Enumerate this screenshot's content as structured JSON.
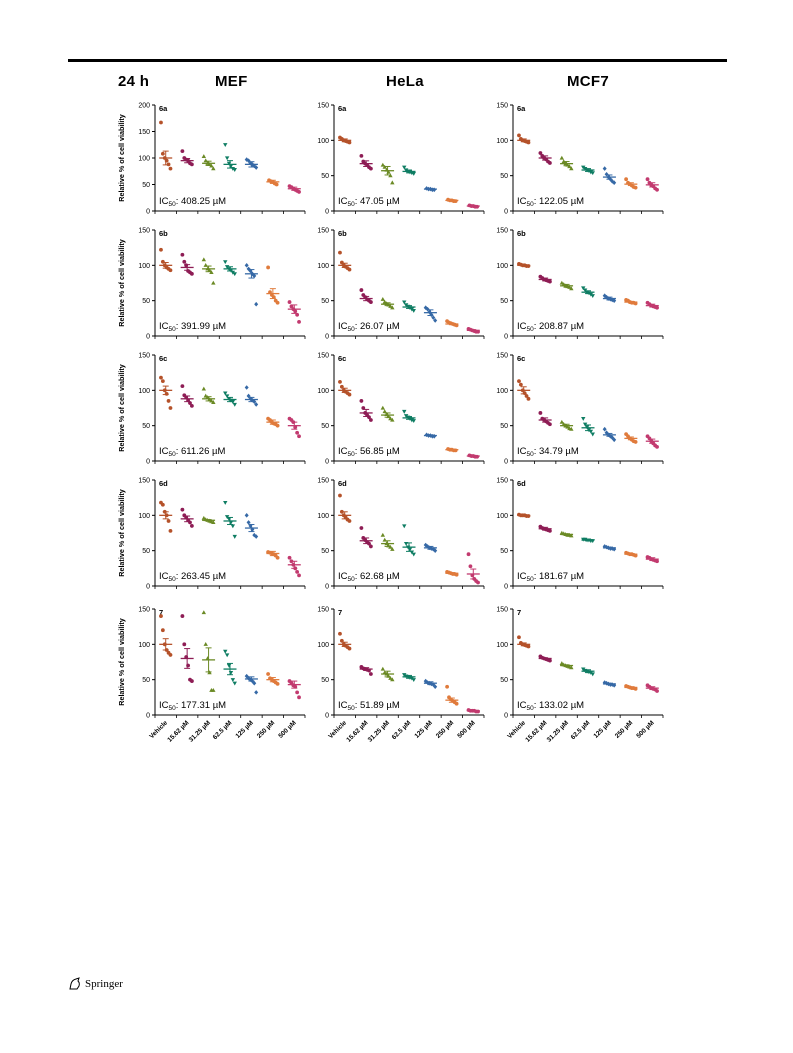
{
  "header": {
    "time_label": "24 h",
    "columns": [
      "MEF",
      "HeLa",
      "MCF7"
    ]
  },
  "ylabel": "Relative % of cell viability",
  "xcategories": [
    "Vehicle",
    "15.62 µM",
    "31.25 µM",
    "62.5 µM",
    "125 µM",
    "250 µM",
    "500 µM"
  ],
  "series_colors": [
    "#b5522a",
    "#8e1d55",
    "#6b8a25",
    "#0f7d63",
    "#3669a6",
    "#e07b3c",
    "#c23a6f"
  ],
  "footer": {
    "publisher": "Springer"
  },
  "chart_data": [
    {
      "type": "scatter",
      "cell": "MEF",
      "label": "6a",
      "ic50_value": "408.25",
      "ic50_unit": "µM",
      "ylim": [
        0,
        200
      ],
      "yticks": [
        0,
        50,
        100,
        150,
        200
      ],
      "means": [
        100,
        95,
        90,
        88,
        88,
        55,
        42
      ],
      "sem": [
        13,
        4,
        4,
        7,
        5,
        3,
        3
      ],
      "points": [
        [
          167,
          108,
          100,
          95,
          88,
          80
        ],
        [
          113,
          100,
          97,
          95,
          90,
          88
        ],
        [
          103,
          95,
          90,
          88,
          85,
          80
        ],
        [
          125,
          100,
          90,
          85,
          80,
          78
        ],
        [
          97,
          95,
          90,
          88,
          85,
          82
        ],
        [
          58,
          56,
          55,
          52,
          50
        ],
        [
          47,
          45,
          42,
          40,
          38,
          36
        ]
      ]
    },
    {
      "type": "scatter",
      "cell": "HeLa",
      "label": "6a",
      "ic50_value": "47.05",
      "ic50_unit": "µM",
      "ylim": [
        0,
        150
      ],
      "yticks": [
        0,
        50,
        100,
        150
      ],
      "means": [
        100,
        67,
        57,
        56,
        31,
        15,
        7
      ],
      "sem": [
        2,
        4,
        6,
        2,
        1,
        1,
        1
      ],
      "points": [
        [
          104,
          102,
          100,
          99,
          98,
          97
        ],
        [
          78,
          70,
          67,
          65,
          62,
          60
        ],
        [
          65,
          62,
          58,
          55,
          50,
          40
        ],
        [
          62,
          58,
          56,
          55,
          54,
          53
        ],
        [
          32,
          31,
          31,
          30,
          30
        ],
        [
          16,
          15,
          15,
          14,
          14
        ],
        [
          8,
          7,
          7,
          6,
          6
        ]
      ]
    },
    {
      "type": "scatter",
      "cell": "MCF7",
      "label": "6a",
      "ic50_value": "122.05",
      "ic50_unit": "µM",
      "ylim": [
        0,
        150
      ],
      "yticks": [
        0,
        50,
        100,
        150
      ],
      "means": [
        100,
        75,
        67,
        58,
        48,
        38,
        37
      ],
      "sem": [
        2,
        3,
        3,
        2,
        3,
        2,
        3
      ],
      "points": [
        [
          107,
          102,
          100,
          99,
          98,
          97
        ],
        [
          82,
          78,
          75,
          73,
          70,
          68
        ],
        [
          75,
          70,
          67,
          65,
          63,
          60
        ],
        [
          62,
          60,
          58,
          57,
          55,
          54
        ],
        [
          60,
          52,
          48,
          45,
          42,
          40
        ],
        [
          45,
          40,
          38,
          36,
          34,
          33
        ],
        [
          45,
          40,
          37,
          35,
          32,
          30
        ]
      ]
    },
    {
      "type": "scatter",
      "cell": "MEF",
      "label": "6b",
      "ic50_value": "391.99",
      "ic50_unit": "µM",
      "ylim": [
        0,
        150
      ],
      "yticks": [
        0,
        50,
        100,
        150
      ],
      "means": [
        100,
        97,
        95,
        95,
        88,
        60,
        38
      ],
      "sem": [
        4,
        4,
        4,
        3,
        6,
        7,
        6
      ],
      "points": [
        [
          122,
          105,
          100,
          97,
          95,
          93
        ],
        [
          115,
          105,
          100,
          92,
          90,
          88
        ],
        [
          108,
          100,
          95,
          93,
          90,
          75
        ],
        [
          105,
          98,
          95,
          93,
          90,
          88
        ],
        [
          100,
          95,
          92,
          88,
          85,
          45
        ],
        [
          97,
          62,
          58,
          55,
          50,
          47
        ],
        [
          48,
          42,
          38,
          35,
          30,
          20
        ]
      ]
    },
    {
      "type": "scatter",
      "cell": "HeLa",
      "label": "6b",
      "ic50_value": "26.07",
      "ic50_unit": "µM",
      "ylim": [
        0,
        150
      ],
      "yticks": [
        0,
        50,
        100,
        150
      ],
      "means": [
        100,
        53,
        45,
        41,
        33,
        17,
        8
      ],
      "sem": [
        3,
        3,
        2,
        2,
        4,
        1,
        1
      ],
      "points": [
        [
          118,
          104,
          100,
          98,
          96,
          94
        ],
        [
          65,
          58,
          55,
          52,
          50,
          48
        ],
        [
          52,
          48,
          46,
          44,
          42,
          40
        ],
        [
          48,
          44,
          42,
          40,
          38,
          36
        ],
        [
          40,
          38,
          34,
          30,
          26,
          22
        ],
        [
          21,
          19,
          18,
          17,
          16,
          15
        ],
        [
          10,
          9,
          8,
          7,
          6,
          6
        ]
      ]
    },
    {
      "type": "scatter",
      "cell": "MCF7",
      "label": "6b",
      "ic50_value": "208.87",
      "ic50_unit": "µM",
      "ylim": [
        0,
        150
      ],
      "yticks": [
        0,
        50,
        100,
        150
      ],
      "means": [
        100,
        80,
        71,
        62,
        53,
        48,
        43
      ],
      "sem": [
        1,
        2,
        2,
        2,
        2,
        1,
        2
      ],
      "points": [
        [
          102,
          101,
          100,
          100,
          99,
          99
        ],
        [
          84,
          82,
          80,
          79,
          78,
          77
        ],
        [
          75,
          73,
          71,
          70,
          69,
          67
        ],
        [
          68,
          65,
          62,
          61,
          59,
          57
        ],
        [
          57,
          55,
          53,
          52,
          51,
          50
        ],
        [
          51,
          50,
          48,
          47,
          47,
          46
        ],
        [
          47,
          45,
          43,
          42,
          41,
          40
        ]
      ]
    },
    {
      "type": "scatter",
      "cell": "MEF",
      "label": "6c",
      "ic50_value": "611.26",
      "ic50_unit": "µM",
      "ylim": [
        0,
        150
      ],
      "yticks": [
        0,
        50,
        100,
        150
      ],
      "means": [
        100,
        88,
        88,
        87,
        87,
        55,
        50
      ],
      "sem": [
        6,
        4,
        3,
        3,
        3,
        3,
        5
      ],
      "points": [
        [
          118,
          113,
          100,
          95,
          85,
          75
        ],
        [
          106,
          93,
          90,
          86,
          82,
          78
        ],
        [
          102,
          92,
          90,
          87,
          85,
          83
        ],
        [
          96,
          92,
          88,
          86,
          84,
          80
        ],
        [
          104,
          92,
          88,
          86,
          84,
          80
        ],
        [
          60,
          58,
          55,
          53,
          52,
          50
        ],
        [
          60,
          58,
          55,
          48,
          40,
          35
        ]
      ]
    },
    {
      "type": "scatter",
      "cell": "HeLa",
      "label": "6c",
      "ic50_value": "56.85",
      "ic50_unit": "µM",
      "ylim": [
        0,
        150
      ],
      "yticks": [
        0,
        50,
        100,
        150
      ],
      "means": [
        100,
        68,
        65,
        61,
        36,
        16,
        7
      ],
      "sem": [
        3,
        5,
        3,
        2,
        1,
        1,
        1
      ],
      "points": [
        [
          112,
          105,
          100,
          98,
          96,
          94
        ],
        [
          85,
          75,
          68,
          65,
          62,
          58
        ],
        [
          75,
          70,
          66,
          63,
          60,
          58
        ],
        [
          70,
          64,
          62,
          60,
          58,
          57
        ],
        [
          37,
          36,
          36,
          35,
          35
        ],
        [
          17,
          16,
          16,
          15,
          15
        ],
        [
          8,
          7,
          7,
          6,
          6
        ]
      ]
    },
    {
      "type": "scatter",
      "cell": "MCF7",
      "label": "6c",
      "ic50_value": "34.79",
      "ic50_unit": "µM",
      "ylim": [
        0,
        150
      ],
      "yticks": [
        0,
        50,
        100,
        150
      ],
      "means": [
        100,
        58,
        50,
        47,
        37,
        32,
        28
      ],
      "sem": [
        5,
        3,
        2,
        4,
        2,
        2,
        3
      ],
      "points": [
        [
          113,
          108,
          100,
          96,
          92,
          88
        ],
        [
          68,
          60,
          58,
          56,
          54,
          52
        ],
        [
          55,
          52,
          50,
          48,
          46,
          45
        ],
        [
          60,
          52,
          48,
          44,
          42,
          38
        ],
        [
          45,
          40,
          37,
          35,
          33,
          30
        ],
        [
          38,
          35,
          32,
          30,
          28,
          27
        ],
        [
          35,
          32,
          28,
          25,
          22,
          20
        ]
      ]
    },
    {
      "type": "scatter",
      "cell": "MEF",
      "label": "6d",
      "ic50_value": "263.45",
      "ic50_unit": "µM",
      "ylim": [
        0,
        150
      ],
      "yticks": [
        0,
        50,
        100,
        150
      ],
      "means": [
        100,
        95,
        93,
        92,
        82,
        46,
        30
      ],
      "sem": [
        5,
        4,
        1,
        5,
        5,
        3,
        5
      ],
      "points": [
        [
          118,
          115,
          105,
          100,
          92,
          78
        ],
        [
          108,
          100,
          97,
          93,
          90,
          85
        ],
        [
          96,
          94,
          93,
          92,
          91,
          90
        ],
        [
          118,
          98,
          95,
          90,
          85,
          70
        ],
        [
          100,
          90,
          85,
          80,
          72,
          70
        ],
        [
          48,
          47,
          46,
          45,
          43,
          40
        ],
        [
          40,
          35,
          30,
          25,
          20,
          15
        ]
      ]
    },
    {
      "type": "scatter",
      "cell": "HeLa",
      "label": "6d",
      "ic50_value": "62.68",
      "ic50_unit": "µM",
      "ylim": [
        0,
        150
      ],
      "yticks": [
        0,
        50,
        100,
        150
      ],
      "means": [
        100,
        64,
        60,
        55,
        54,
        18,
        17
      ],
      "sem": [
        5,
        4,
        4,
        6,
        2,
        1,
        7
      ],
      "points": [
        [
          128,
          105,
          100,
          97,
          94,
          92
        ],
        [
          82,
          68,
          65,
          62,
          60,
          56
        ],
        [
          72,
          65,
          60,
          57,
          55,
          52
        ],
        [
          85,
          60,
          55,
          52,
          48,
          45
        ],
        [
          58,
          56,
          54,
          53,
          52,
          50
        ],
        [
          20,
          19,
          18,
          17,
          17,
          16
        ],
        [
          45,
          28,
          15,
          10,
          7,
          5
        ]
      ]
    },
    {
      "type": "scatter",
      "cell": "MCF7",
      "label": "6d",
      "ic50_value": "181.67",
      "ic50_unit": "µM",
      "ylim": [
        0,
        150
      ],
      "yticks": [
        0,
        50,
        100,
        150
      ],
      "means": [
        100,
        81,
        73,
        65,
        54,
        45,
        38
      ],
      "sem": [
        1,
        2,
        1,
        1,
        1,
        1,
        2
      ],
      "points": [
        [
          101,
          100,
          100,
          100,
          99,
          99
        ],
        [
          84,
          82,
          81,
          80,
          79,
          78
        ],
        [
          75,
          74,
          73,
          72,
          72,
          71
        ],
        [
          66,
          66,
          65,
          65,
          64,
          64
        ],
        [
          56,
          55,
          54,
          53,
          53,
          52
        ],
        [
          47,
          46,
          45,
          45,
          44,
          43
        ],
        [
          41,
          40,
          38,
          37,
          36,
          35
        ]
      ]
    },
    {
      "type": "scatter",
      "cell": "MEF",
      "label": "7",
      "ic50_value": "177.31",
      "ic50_unit": "µM",
      "ylim": [
        0,
        150
      ],
      "yticks": [
        0,
        50,
        100,
        150
      ],
      "means": [
        100,
        80,
        78,
        65,
        51,
        50,
        43
      ],
      "sem": [
        8,
        14,
        17,
        8,
        3,
        3,
        5
      ],
      "points": [
        [
          140,
          120,
          100,
          92,
          88,
          85
        ],
        [
          140,
          100,
          82,
          70,
          50,
          48
        ],
        [
          145,
          100,
          80,
          60,
          35,
          35
        ],
        [
          90,
          85,
          70,
          60,
          50,
          45
        ],
        [
          55,
          52,
          50,
          48,
          45,
          32
        ],
        [
          58,
          52,
          50,
          48,
          46,
          44
        ],
        [
          48,
          45,
          42,
          40,
          32,
          25
        ]
      ]
    },
    {
      "type": "scatter",
      "cell": "HeLa",
      "label": "7",
      "ic50_value": "51.89",
      "ic50_unit": "µM",
      "ylim": [
        0,
        150
      ],
      "yticks": [
        0,
        50,
        100,
        150
      ],
      "means": [
        100,
        65,
        58,
        54,
        45,
        21,
        6
      ],
      "sem": [
        3,
        2,
        4,
        2,
        2,
        3,
        1
      ],
      "points": [
        [
          115,
          105,
          100,
          98,
          96,
          94
        ],
        [
          68,
          66,
          65,
          64,
          63,
          58
        ],
        [
          65,
          60,
          58,
          55,
          52,
          50
        ],
        [
          57,
          55,
          54,
          53,
          52,
          50
        ],
        [
          48,
          46,
          45,
          44,
          43,
          40
        ],
        [
          40,
          25,
          22,
          20,
          18,
          16
        ],
        [
          7,
          6,
          6,
          6,
          5,
          5
        ]
      ]
    },
    {
      "type": "scatter",
      "cell": "MCF7",
      "label": "7",
      "ic50_value": "133.02",
      "ic50_unit": "µM",
      "ylim": [
        0,
        150
      ],
      "yticks": [
        0,
        50,
        100,
        150
      ],
      "means": [
        100,
        80,
        70,
        62,
        44,
        39,
        38
      ],
      "sem": [
        2,
        1,
        1,
        2,
        1,
        1,
        2
      ],
      "points": [
        [
          110,
          102,
          100,
          99,
          98,
          97
        ],
        [
          83,
          81,
          80,
          79,
          78,
          77
        ],
        [
          73,
          71,
          70,
          69,
          68,
          67
        ],
        [
          65,
          63,
          62,
          61,
          60,
          58
        ],
        [
          46,
          45,
          44,
          43,
          43,
          42
        ],
        [
          41,
          40,
          39,
          38,
          38,
          37
        ],
        [
          42,
          40,
          38,
          37,
          36,
          34
        ]
      ]
    }
  ]
}
